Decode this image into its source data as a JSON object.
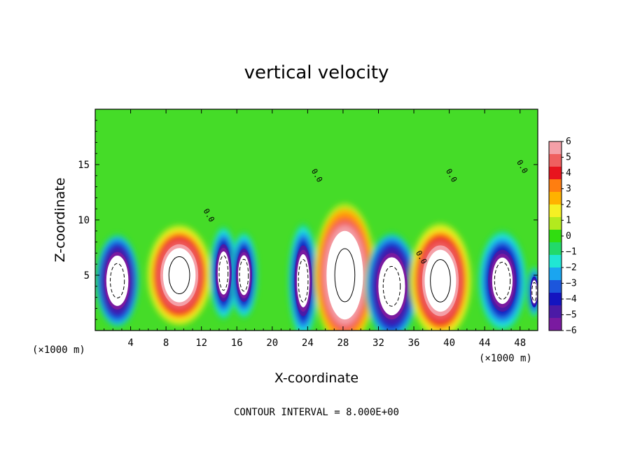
{
  "chart_data": {
    "type": "heatmap",
    "title": "vertical velocity",
    "xlabel": "X-coordinate",
    "ylabel": "Z-coordinate",
    "x_unit_left": "(×1000 m)",
    "x_unit_right": "(×1000 m)",
    "xlim": [
      0,
      50
    ],
    "ylim": [
      0,
      20
    ],
    "x_ticks": [
      4,
      8,
      12,
      16,
      20,
      24,
      28,
      32,
      36,
      40,
      44,
      48
    ],
    "y_ticks": [
      5,
      10,
      15
    ],
    "colorbar": {
      "min": -6,
      "max": 6,
      "ticks": [
        6,
        5,
        4,
        3,
        2,
        1,
        0,
        -1,
        -2,
        -3,
        -4,
        -5,
        -6
      ],
      "colors": [
        "#f4a0a8",
        "#ef5f5f",
        "#e8141e",
        "#ff7e10",
        "#ffb200",
        "#f5f024",
        "#b3ea1e",
        "#30dd10",
        "#22d96a",
        "#20e6d4",
        "#1aa5f0",
        "#1c56dc",
        "#1414c0",
        "#4b1aa6",
        "#7a1aa0"
      ],
      "over_color": "#ffffff",
      "under_color": "#ffffff"
    },
    "contour_interval": "CONTOUR INTERVAL = 8.000E+00",
    "contour_labels": [
      "0.0",
      "0.0",
      "0.0",
      "0.0",
      "0.0"
    ],
    "cells": [
      {
        "x": 2.5,
        "z": 4.5,
        "w": 3.8,
        "h": 6.5,
        "value": -7
      },
      {
        "x": 9.5,
        "z": 5.0,
        "w": 5.6,
        "h": 7.0,
        "value": 7
      },
      {
        "x": 14.5,
        "z": 5.2,
        "w": 2.4,
        "h": 6.5,
        "value": -6
      },
      {
        "x": 16.8,
        "z": 5.0,
        "w": 2.4,
        "h": 6.0,
        "value": -6
      },
      {
        "x": 23.5,
        "z": 4.5,
        "w": 2.6,
        "h": 8.0,
        "value": -6
      },
      {
        "x": 28.2,
        "z": 5.0,
        "w": 5.4,
        "h": 10.0,
        "value": 8
      },
      {
        "x": 33.5,
        "z": 4.0,
        "w": 4.6,
        "h": 7.5,
        "value": -7
      },
      {
        "x": 39.0,
        "z": 4.5,
        "w": 5.4,
        "h": 8.0,
        "value": 7
      },
      {
        "x": 46.0,
        "z": 4.5,
        "w": 4.2,
        "h": 7.0,
        "value": -6
      },
      {
        "x": 49.6,
        "z": 3.5,
        "w": 1.2,
        "h": 3.5,
        "value": -5
      }
    ]
  }
}
